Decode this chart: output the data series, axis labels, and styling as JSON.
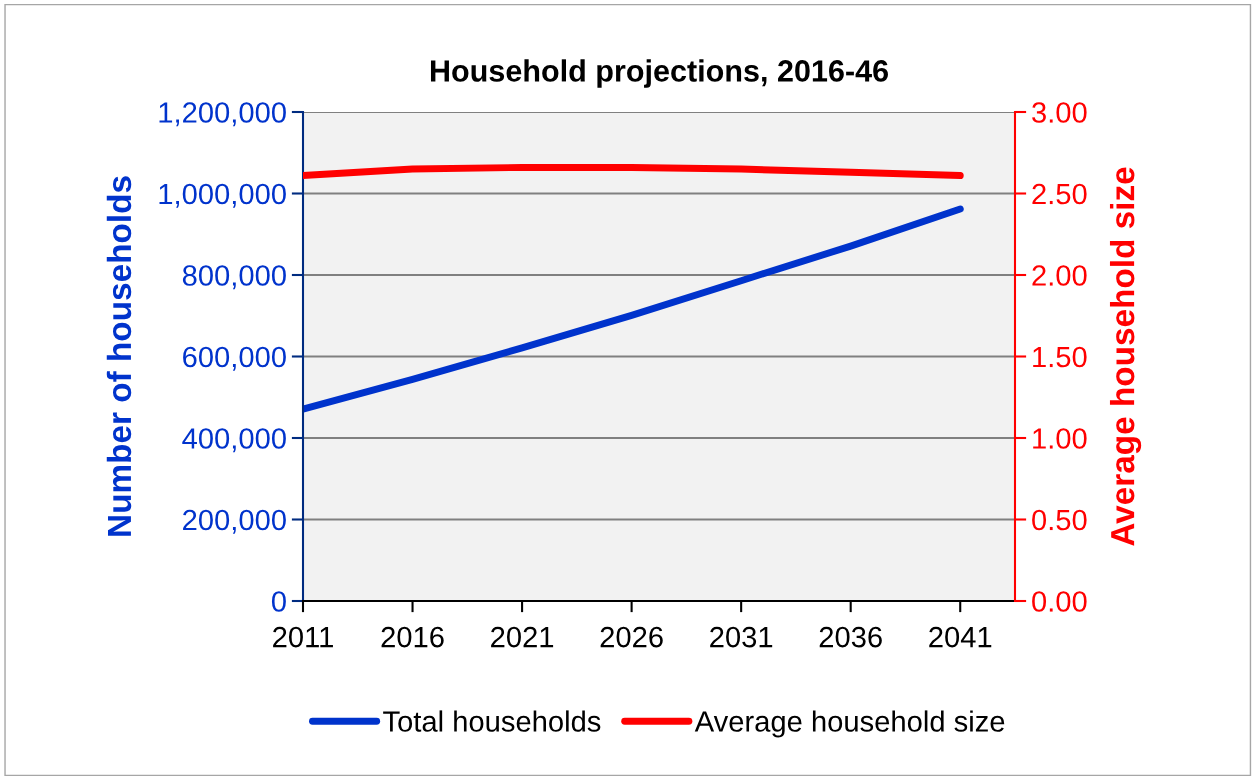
{
  "chart_data": {
    "type": "line",
    "title": "Household projections, 2016-46",
    "ylabel": "Number of households",
    "y2label": "Average household size",
    "x": [
      2011,
      2016,
      2021,
      2026,
      2031,
      2036,
      2041
    ],
    "series": [
      {
        "name": "Total households",
        "color": "#0033cc",
        "values": [
          471000,
          544000,
          621000,
          701000,
          786000,
          871000,
          962000
        ]
      },
      {
        "name": "Average household size",
        "color": "#ff0000",
        "axis": "y2",
        "values": [
          2.61,
          2.65,
          2.66,
          2.66,
          2.65,
          2.63,
          2.61
        ]
      }
    ],
    "xlim": [
      2011,
      2043.5
    ],
    "xticks": [
      2011,
      2016,
      2021,
      2026,
      2031,
      2036,
      2041
    ],
    "ylim": [
      0,
      1200000
    ],
    "yticks": [
      {
        "value": 0,
        "label": "0"
      },
      {
        "value": 200000,
        "label": "200,000"
      },
      {
        "value": 400000,
        "label": "400,000"
      },
      {
        "value": 600000,
        "label": "600,000"
      },
      {
        "value": 800000,
        "label": "800,000"
      },
      {
        "value": 1000000,
        "label": "1,000,000"
      },
      {
        "value": 1200000,
        "label": "1,200,000"
      }
    ],
    "y2lim": [
      0,
      3
    ],
    "y2ticks": [
      {
        "value": 0,
        "label": "0.00"
      },
      {
        "value": 0.5,
        "label": "0.50"
      },
      {
        "value": 1,
        "label": "1.00"
      },
      {
        "value": 1.5,
        "label": "1.50"
      },
      {
        "value": 2,
        "label": "2.00"
      },
      {
        "value": 2.5,
        "label": "2.50"
      },
      {
        "value": 3,
        "label": "3.00"
      }
    ],
    "grid": "y",
    "legend": "bottom",
    "marker": "none",
    "line_style": "solid"
  }
}
